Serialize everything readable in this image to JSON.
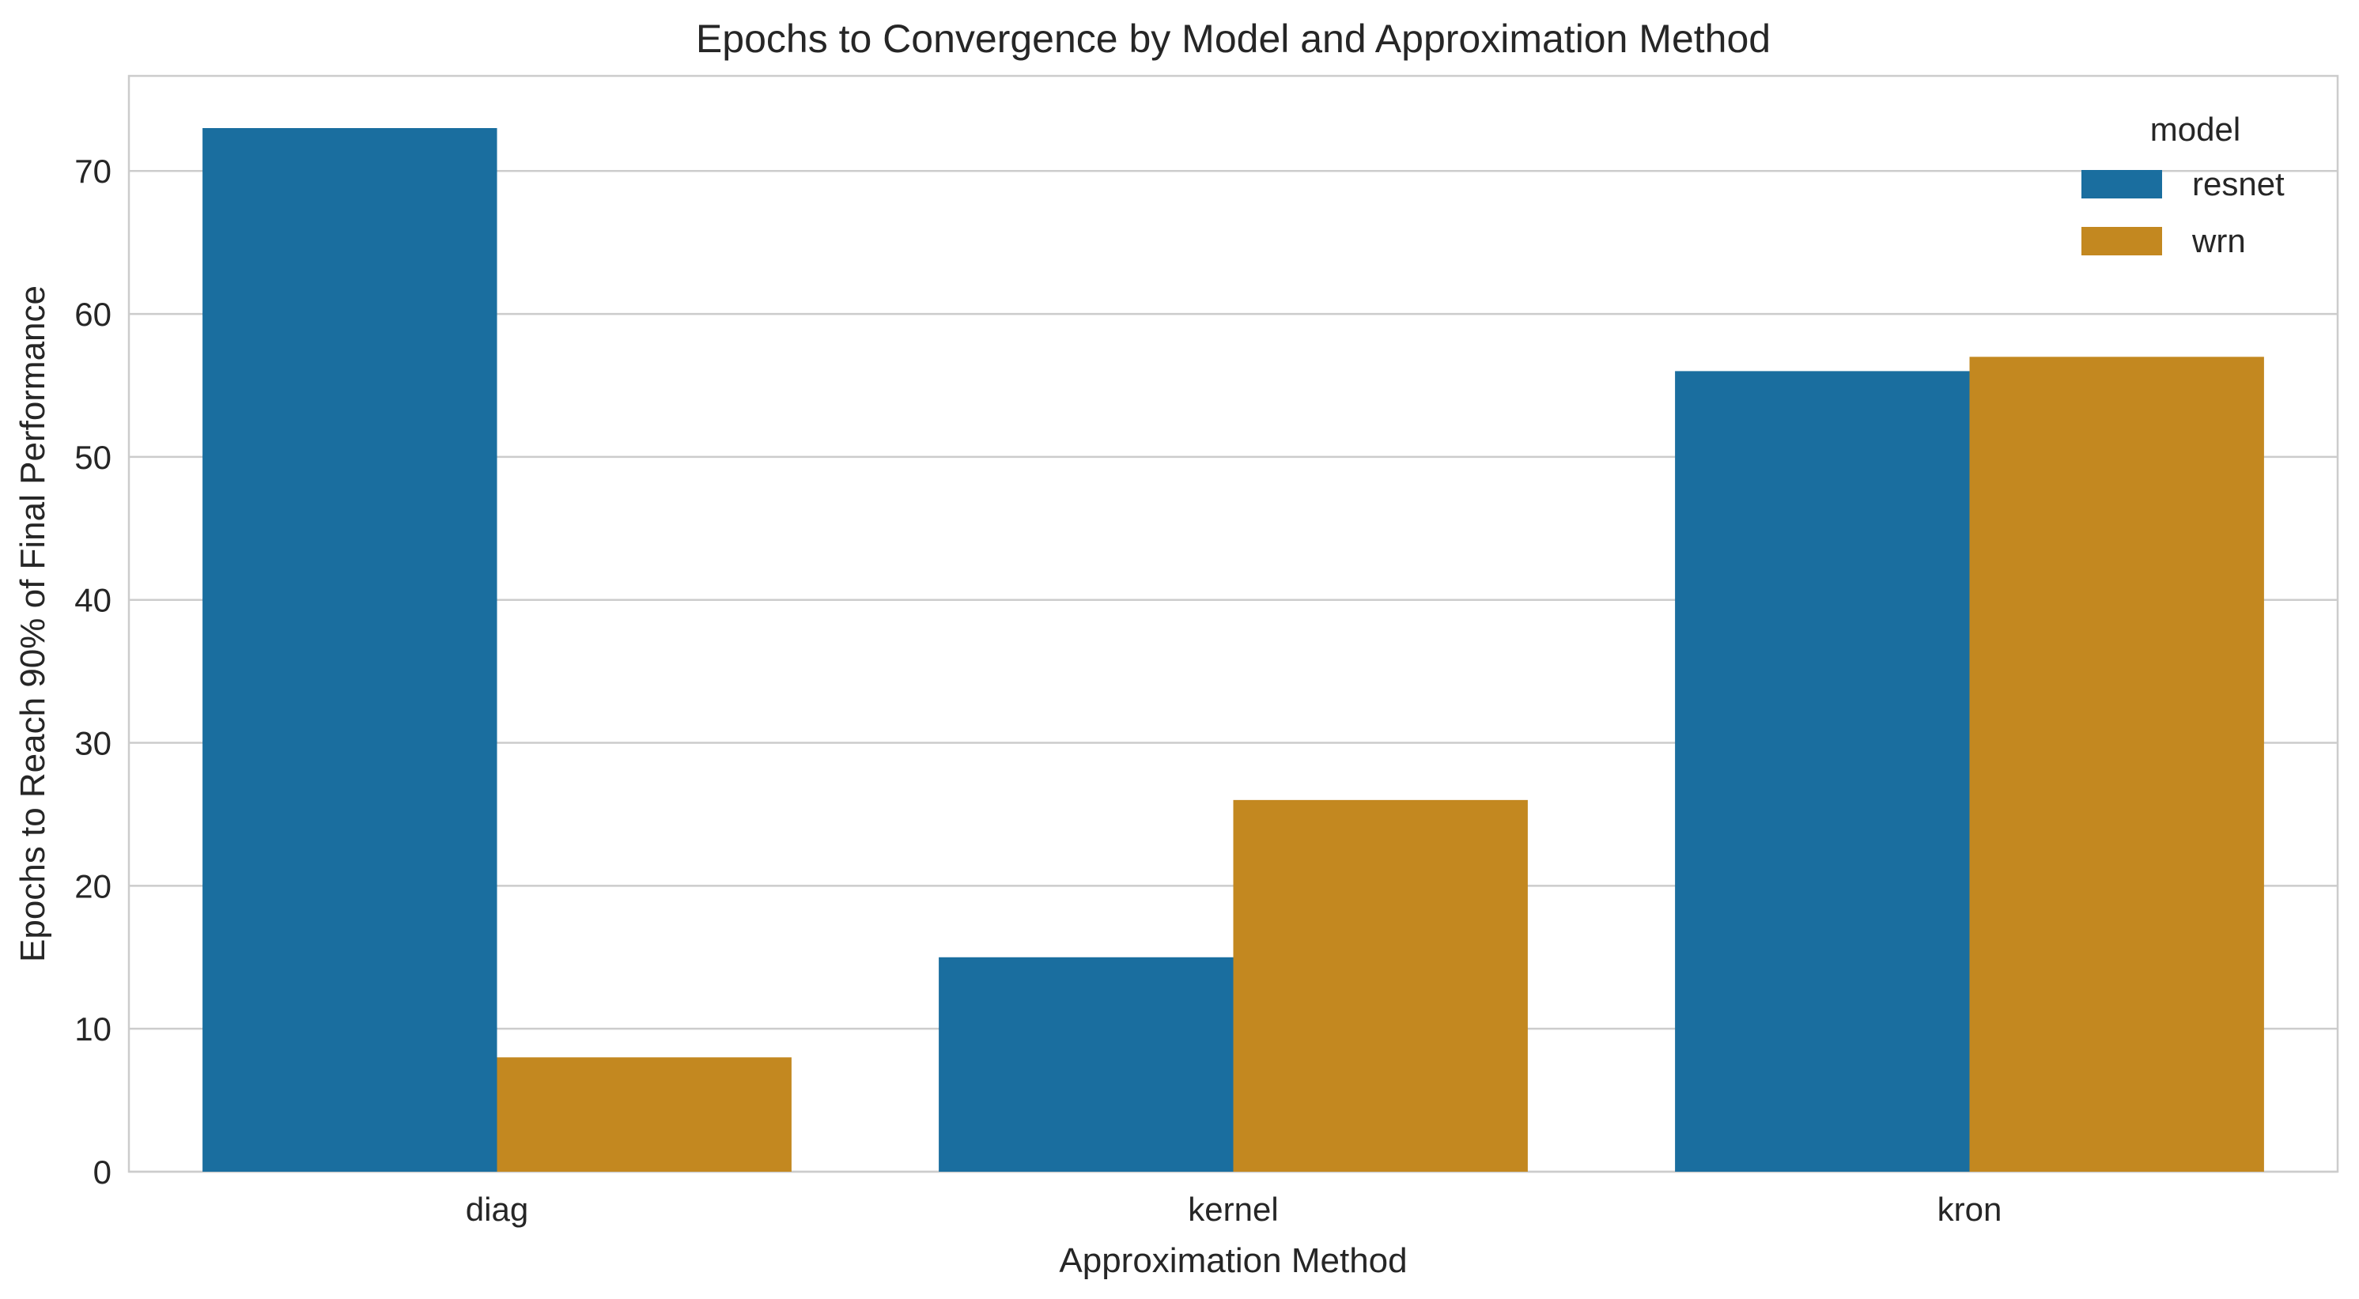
{
  "chart_data": {
    "type": "bar",
    "title": "Epochs to Convergence by Model and Approximation Method",
    "xlabel": "Approximation Method",
    "ylabel": "Epochs to Reach 90% of Final Performance",
    "categories": [
      "diag",
      "kernel",
      "kron"
    ],
    "series": [
      {
        "name": "resnet",
        "color": "#1a6e9f",
        "values": [
          73,
          15,
          56
        ]
      },
      {
        "name": "wrn",
        "color": "#c38820",
        "values": [
          8,
          26,
          57
        ]
      }
    ],
    "ylim": [
      0,
      76.65
    ],
    "yticks": [
      0,
      10,
      20,
      30,
      40,
      50,
      60,
      70
    ],
    "grid": true,
    "legend": {
      "title": "model",
      "position": "top-right"
    }
  }
}
